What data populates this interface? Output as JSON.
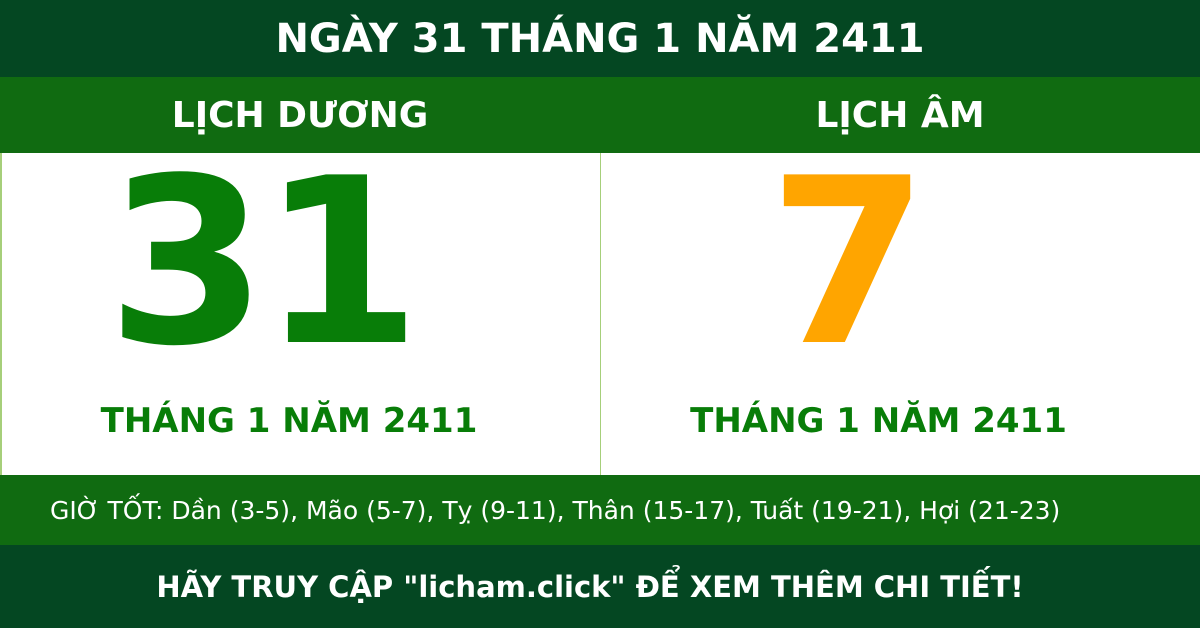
{
  "title": "NGÀY 31 THÁNG 1 NĂM 2411",
  "solar": {
    "heading": "LỊCH DƯƠNG",
    "day": "31",
    "month_year": "THÁNG 1 NĂM 2411"
  },
  "lunar": {
    "heading": "LỊCH ÂM",
    "day": "7",
    "month_year": "THÁNG 1 NĂM 2411"
  },
  "good_hours": "GIỜ TỐT: Dần (3-5), Mão (5-7), Tỵ (9-11), Thân (15-17), Tuất (19-21), Hợi (21-23)",
  "footer": "HÃY TRUY CẬP \"licham.click\" ĐỂ XEM THÊM CHI TIẾT!",
  "colors": {
    "dark_green": "#044722",
    "mid_green": "#106b11",
    "solar_day": "#087d08",
    "lunar_day": "#ffa500"
  }
}
